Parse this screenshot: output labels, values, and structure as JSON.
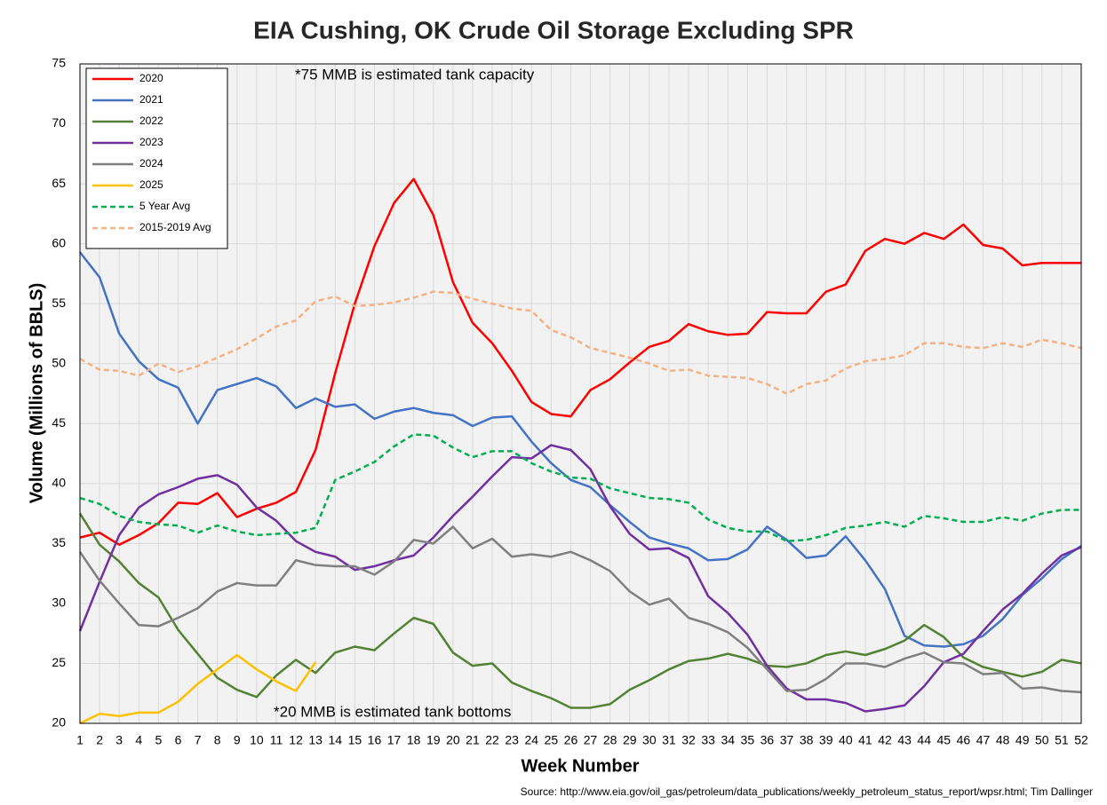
{
  "chart_data": {
    "type": "line",
    "title": "EIA Cushing, OK Crude Oil Storage Excluding SPR",
    "x_label": "Week Number",
    "y_label": "Volume (Millions of BBLS)",
    "annotations": [
      "*75 MMB is estimated tank capacity",
      "*20 MMB is estimated tank bottoms"
    ],
    "source": "Source: http://www.eia.gov/oil_gas/petroleum/data_publications/weekly_petroleum_status_report/wpsr.html; Tim Dallinger",
    "x": [
      1,
      2,
      3,
      4,
      5,
      6,
      7,
      8,
      9,
      10,
      11,
      12,
      13,
      14,
      15,
      16,
      17,
      18,
      19,
      20,
      21,
      22,
      23,
      24,
      25,
      26,
      27,
      28,
      29,
      30,
      31,
      32,
      33,
      34,
      35,
      36,
      37,
      38,
      39,
      40,
      41,
      42,
      43,
      44,
      45,
      46,
      47,
      48,
      49,
      50,
      51,
      52
    ],
    "xlim": [
      1,
      52
    ],
    "ylim": [
      20,
      75
    ],
    "yticks": [
      20,
      25,
      30,
      35,
      40,
      45,
      50,
      55,
      60,
      65,
      70,
      75
    ],
    "grid": true,
    "legend": "upper left",
    "series": [
      {
        "name": "2020",
        "color": "#ff0000",
        "dashed": false,
        "values": [
          35.5,
          35.9,
          34.9,
          35.7,
          36.7,
          38.4,
          38.3,
          39.2,
          37.2,
          37.9,
          38.4,
          39.3,
          42.8,
          49.2,
          55.0,
          59.8,
          63.4,
          65.4,
          62.4,
          56.8,
          53.4,
          51.7,
          49.4,
          46.8,
          45.8,
          45.6,
          47.8,
          48.7,
          50.1,
          51.4,
          51.9,
          53.3,
          52.7,
          52.4,
          52.5,
          54.3,
          54.2,
          54.2,
          56.0,
          56.6,
          59.4,
          60.4,
          60.0,
          60.9,
          60.4,
          61.6,
          59.9,
          59.6,
          58.2,
          58.4,
          58.4,
          58.4
        ]
      },
      {
        "name": "2021",
        "color": "#4472c4",
        "dashed": false,
        "values": [
          59.3,
          57.2,
          52.5,
          50.2,
          48.7,
          48.0,
          45.0,
          47.8,
          48.3,
          48.8,
          48.1,
          46.3,
          47.1,
          46.4,
          46.6,
          45.4,
          46.0,
          46.3,
          45.9,
          45.7,
          44.8,
          45.5,
          45.6,
          43.5,
          41.7,
          40.3,
          39.7,
          38.2,
          36.8,
          35.5,
          35.0,
          34.6,
          33.6,
          33.7,
          34.5,
          36.4,
          35.3,
          33.8,
          34.0,
          35.6,
          33.6,
          31.2,
          27.3,
          26.5,
          26.4,
          26.6,
          27.3,
          28.7,
          30.7,
          32.1,
          33.7,
          34.8
        ]
      },
      {
        "name": "2022",
        "color": "#548235",
        "dashed": false,
        "values": [
          37.5,
          34.9,
          33.5,
          31.7,
          30.5,
          27.8,
          25.8,
          23.8,
          22.8,
          22.2,
          24.0,
          25.3,
          24.2,
          25.9,
          26.4,
          26.1,
          27.5,
          28.8,
          28.3,
          25.9,
          24.8,
          25.0,
          23.4,
          22.7,
          22.1,
          21.3,
          21.3,
          21.6,
          22.8,
          23.6,
          24.5,
          25.2,
          25.4,
          25.8,
          25.4,
          24.8,
          24.7,
          25.0,
          25.7,
          26.0,
          25.7,
          26.2,
          26.9,
          28.2,
          27.2,
          25.5,
          24.7,
          24.3,
          23.9,
          24.3,
          25.3,
          25.0
        ]
      },
      {
        "name": "2023",
        "color": "#7030a0",
        "dashed": false,
        "values": [
          27.7,
          31.8,
          35.7,
          38.0,
          39.1,
          39.7,
          40.4,
          40.7,
          39.9,
          38.0,
          36.9,
          35.2,
          34.3,
          33.9,
          32.8,
          33.1,
          33.6,
          34.0,
          35.5,
          37.3,
          38.9,
          40.6,
          42.2,
          42.1,
          43.2,
          42.8,
          41.2,
          38.1,
          35.8,
          34.5,
          34.6,
          33.8,
          30.6,
          29.2,
          27.4,
          24.8,
          22.9,
          22.0,
          22.0,
          21.7,
          21.0,
          21.2,
          21.5,
          23.1,
          25.1,
          25.8,
          27.7,
          29.5,
          30.8,
          32.5,
          34.0,
          34.7
        ]
      },
      {
        "name": "2024",
        "color": "#7f7f7f",
        "dashed": false,
        "values": [
          34.3,
          31.9,
          30.0,
          28.2,
          28.1,
          28.8,
          29.6,
          31.0,
          31.7,
          31.5,
          31.5,
          33.6,
          33.2,
          33.1,
          33.1,
          32.4,
          33.5,
          35.3,
          35.0,
          36.4,
          34.6,
          35.4,
          33.9,
          34.1,
          33.9,
          34.3,
          33.6,
          32.7,
          31.0,
          29.9,
          30.4,
          28.8,
          28.3,
          27.6,
          26.3,
          24.5,
          22.7,
          22.8,
          23.7,
          25.0,
          25.0,
          24.7,
          25.4,
          25.9,
          25.1,
          25.0,
          24.1,
          24.2,
          22.9,
          23.0,
          22.7,
          22.6
        ]
      },
      {
        "name": "2025",
        "color": "#ffc000",
        "dashed": false,
        "values": [
          20.0,
          20.8,
          20.6,
          20.9,
          20.9,
          21.8,
          23.3,
          24.5,
          25.7,
          24.5,
          23.5,
          22.7,
          25.1,
          null,
          null,
          null,
          null,
          null,
          null,
          null,
          null,
          null,
          null,
          null,
          null,
          null,
          null,
          null,
          null,
          null,
          null,
          null,
          null,
          null,
          null,
          null,
          null,
          null,
          null,
          null,
          null,
          null,
          null,
          null,
          null,
          null,
          null,
          null,
          null,
          null,
          null,
          null
        ]
      },
      {
        "name": "5 Year Avg",
        "color": "#00b050",
        "dashed": true,
        "values": [
          38.8,
          38.3,
          37.3,
          36.8,
          36.6,
          36.5,
          35.9,
          36.5,
          36.0,
          35.7,
          35.8,
          35.9,
          36.3,
          40.3,
          41.0,
          41.8,
          43.1,
          44.1,
          44.0,
          43.0,
          42.2,
          42.7,
          42.7,
          41.7,
          41.0,
          40.5,
          40.4,
          39.6,
          39.2,
          38.8,
          38.7,
          38.4,
          37.0,
          36.3,
          36.0,
          36.0,
          35.2,
          35.3,
          35.7,
          36.3,
          36.5,
          36.8,
          36.4,
          37.3,
          37.1,
          36.8,
          36.8,
          37.2,
          36.9,
          37.5,
          37.8,
          37.8
        ]
      },
      {
        "name": "2015-2019 Avg",
        "color": "#f4b183",
        "dashed": true,
        "values": [
          50.4,
          49.5,
          49.4,
          49.0,
          50.0,
          49.3,
          49.8,
          50.5,
          51.2,
          52.1,
          53.1,
          53.6,
          55.2,
          55.6,
          54.8,
          54.9,
          55.1,
          55.5,
          56.0,
          55.9,
          55.4,
          55.0,
          54.6,
          54.4,
          52.8,
          52.2,
          51.3,
          50.9,
          50.5,
          50.0,
          49.4,
          49.5,
          49.0,
          48.9,
          48.8,
          48.3,
          47.5,
          48.3,
          48.6,
          49.6,
          50.2,
          50.4,
          50.7,
          51.7,
          51.7,
          51.4,
          51.3,
          51.7,
          51.4,
          52.0,
          51.7,
          51.3
        ]
      }
    ]
  }
}
